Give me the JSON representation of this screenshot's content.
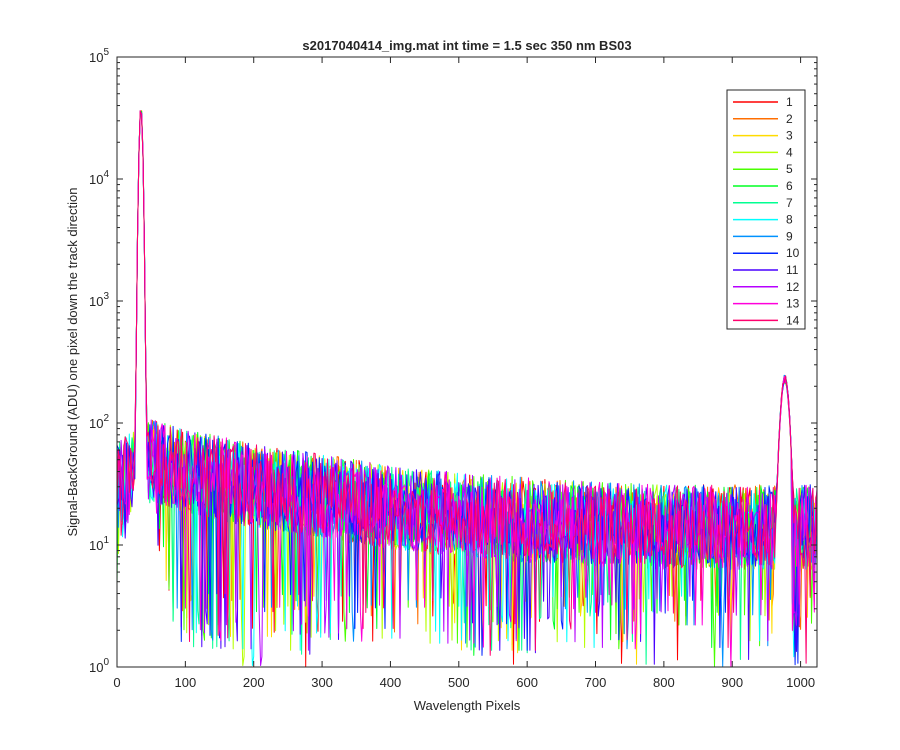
{
  "figure": {
    "title": "s2017040414_img.mat int time = 1.5 sec  350 nm BS03"
  },
  "chart_data": {
    "type": "line",
    "title": "s2017040414_img.mat int time = 1.5 sec  350 nm BS03",
    "xlabel": "Wavelength Pixels",
    "ylabel": "Signal-BackGround (ADU) one pixel down the track direction",
    "xlim": [
      0,
      1024
    ],
    "ylim": [
      1,
      100000
    ],
    "yscale": "log",
    "grid": false,
    "legend_position": "top-right",
    "x_ticks": [
      0,
      100,
      200,
      300,
      400,
      500,
      600,
      700,
      800,
      900,
      1000
    ],
    "x_tick_labels": [
      "0",
      "100",
      "200",
      "300",
      "400",
      "500",
      "600",
      "700",
      "800",
      "900",
      "1000"
    ],
    "y_ticks": [
      1,
      10,
      100,
      1000,
      10000,
      100000
    ],
    "y_tick_labels": [
      {
        "base": "10",
        "exp": "0"
      },
      {
        "base": "10",
        "exp": "1"
      },
      {
        "base": "10",
        "exp": "2"
      },
      {
        "base": "10",
        "exp": "3"
      },
      {
        "base": "10",
        "exp": "4"
      },
      {
        "base": "10",
        "exp": "5"
      }
    ],
    "peaks": [
      {
        "x": 35,
        "y": 40000
      },
      {
        "x": 977,
        "y": 250
      }
    ],
    "baseline": [
      {
        "x": 0,
        "y": 30
      },
      {
        "x": 50,
        "y": 50
      },
      {
        "x": 100,
        "y": 40
      },
      {
        "x": 200,
        "y": 30
      },
      {
        "x": 300,
        "y": 25
      },
      {
        "x": 400,
        "y": 20
      },
      {
        "x": 500,
        "y": 18
      },
      {
        "x": 600,
        "y": 16
      },
      {
        "x": 700,
        "y": 15
      },
      {
        "x": 800,
        "y": 14
      },
      {
        "x": 950,
        "y": 14
      },
      {
        "x": 1024,
        "y": 14
      }
    ],
    "series": [
      {
        "name": "1",
        "color": "#ff0000"
      },
      {
        "name": "2",
        "color": "#ff6e00"
      },
      {
        "name": "3",
        "color": "#ffdb00"
      },
      {
        "name": "4",
        "color": "#b6ff00"
      },
      {
        "name": "5",
        "color": "#49ff00"
      },
      {
        "name": "6",
        "color": "#00ff24"
      },
      {
        "name": "7",
        "color": "#00ff92"
      },
      {
        "name": "8",
        "color": "#00ffff"
      },
      {
        "name": "9",
        "color": "#0092ff"
      },
      {
        "name": "10",
        "color": "#0024ff"
      },
      {
        "name": "11",
        "color": "#4900ff"
      },
      {
        "name": "12",
        "color": "#b600ff"
      },
      {
        "name": "13",
        "color": "#ff00db"
      },
      {
        "name": "14",
        "color": "#ff006e"
      }
    ]
  }
}
